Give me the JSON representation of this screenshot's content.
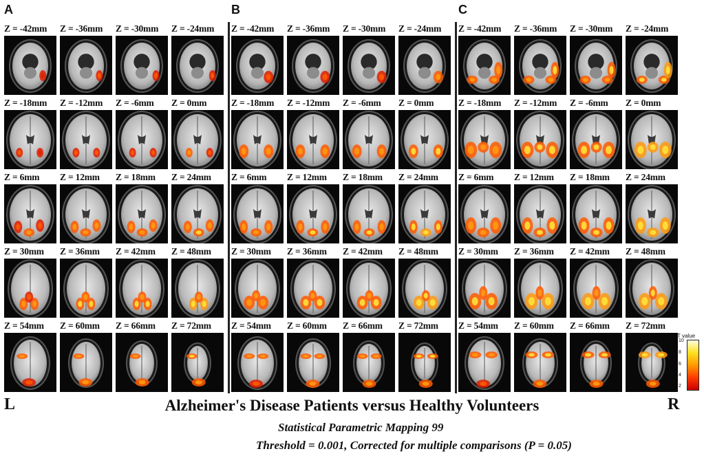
{
  "panels": [
    {
      "letter": "A",
      "rows": [
        [
          "Z = -42mm",
          "Z = -36mm",
          "Z = -30mm",
          "Z = -24mm"
        ],
        [
          "Z = -18mm",
          "Z = -12mm",
          "Z = -6mm",
          "Z = 0mm"
        ],
        [
          "Z = 6mm",
          "Z = 12mm",
          "Z = 18mm",
          "Z = 24mm"
        ],
        [
          "Z = 30mm",
          "Z = 36mm",
          "Z = 42mm",
          "Z = 48mm"
        ],
        [
          "Z = 54mm",
          "Z = 60mm",
          "Z = 66mm",
          "Z = 72mm"
        ]
      ]
    },
    {
      "letter": "B",
      "rows": [
        [
          "Z = -42mm",
          "Z = -36mm",
          "Z = -30mm",
          "Z = -24mm"
        ],
        [
          "Z = -18mm",
          "Z = -12mm",
          "Z = -6mm",
          "Z = 0mm"
        ],
        [
          "Z = 6mm",
          "Z = 12mm",
          "Z = 18mm",
          "Z = 24mm"
        ],
        [
          "Z = 30mm",
          "Z = 36mm",
          "Z = 42mm",
          "Z = 48mm"
        ],
        [
          "Z = 54mm",
          "Z = 60mm",
          "Z = 66mm",
          "Z = 72mm"
        ]
      ]
    },
    {
      "letter": "C",
      "rows": [
        [
          "Z = -42mm",
          "Z = -36mm",
          "Z = -30mm",
          "Z = -24mm"
        ],
        [
          "Z = -18mm",
          "Z = -12mm",
          "Z = -6mm",
          "Z = 0mm"
        ],
        [
          "Z = 6mm",
          "Z = 12mm",
          "Z = 18mm",
          "Z = 24mm"
        ],
        [
          "Z = 30mm",
          "Z = 36mm",
          "Z = 42mm",
          "Z = 48mm"
        ],
        [
          "Z = 54mm",
          "Z = 60mm",
          "Z = 66mm",
          "Z = 72mm"
        ]
      ]
    }
  ],
  "left_label": "L",
  "right_label": "R",
  "title": "Alzheimer's Disease Patients versus Healthy Volunteers",
  "subtitle": "Statistical Parametric Mapping 99",
  "threshold_note": "Threshold = 0.001, Corrected for multiple comparisons (P = 0.05)",
  "colorbar": {
    "title": "T value",
    "ticks": [
      "10",
      "8",
      "6",
      "4",
      "2"
    ],
    "colors": [
      "#ffffe0",
      "#ffe020",
      "#ff9a00",
      "#ff3c00",
      "#c80000"
    ]
  },
  "colors": {
    "background": "#ffffff",
    "slice_background": "#080808",
    "activation_hot": "#ff3c00",
    "activation_peak": "#ffe020"
  }
}
